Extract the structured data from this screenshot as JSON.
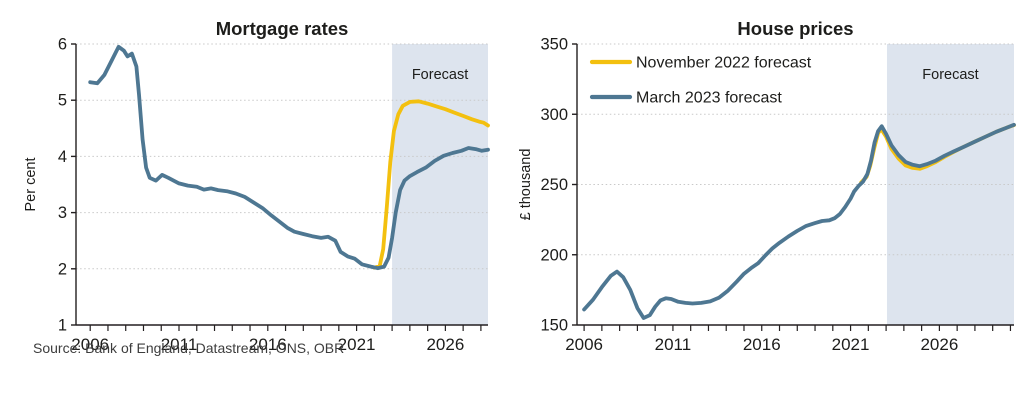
{
  "source_note": "Source: Bank of England, Datastream, ONS, OBR",
  "colors": {
    "nov2022": "#f3c00f",
    "mar2023": "#4e7792",
    "forecast_band": "#dde4ee",
    "grid": "#c9c9c9",
    "axis": "#231f20",
    "text": "#1d1d1b"
  },
  "legend": [
    {
      "label": "November 2022 forecast",
      "color": "nov2022"
    },
    {
      "label": "March 2023 forecast",
      "color": "mar2023"
    }
  ],
  "chart_data": [
    {
      "type": "line",
      "title": "Mortgage rates",
      "ylabel": "Per cent",
      "ylim": [
        1,
        6
      ],
      "yticks": [
        1,
        2,
        3,
        4,
        5,
        6
      ],
      "xlim": [
        2005.2,
        2028.4
      ],
      "xticks_labeled": [
        2006,
        2011,
        2016,
        2021,
        2026
      ],
      "grid": "dotted horizontal",
      "forecast_start": 2023.0,
      "forecast_label": "Forecast",
      "series": [
        {
          "name": "November 2022 forecast",
          "color": "nov2022",
          "points": [
            [
              2022.0,
              2.02
            ],
            [
              2022.3,
              2.05
            ],
            [
              2022.5,
              2.35
            ],
            [
              2022.7,
              3.1
            ],
            [
              2022.9,
              3.9
            ],
            [
              2023.1,
              4.45
            ],
            [
              2023.35,
              4.75
            ],
            [
              2023.6,
              4.9
            ],
            [
              2024.0,
              4.97
            ],
            [
              2024.5,
              4.98
            ],
            [
              2025.0,
              4.94
            ],
            [
              2025.5,
              4.89
            ],
            [
              2026.0,
              4.84
            ],
            [
              2026.5,
              4.78
            ],
            [
              2027.0,
              4.72
            ],
            [
              2027.5,
              4.66
            ],
            [
              2027.9,
              4.62
            ],
            [
              2028.15,
              4.6
            ],
            [
              2028.4,
              4.55
            ]
          ]
        },
        {
          "name": "March 2023 forecast",
          "color": "mar2023",
          "points": [
            [
              2006,
              5.32
            ],
            [
              2006.4,
              5.3
            ],
            [
              2006.8,
              5.45
            ],
            [
              2007.2,
              5.7
            ],
            [
              2007.6,
              5.95
            ],
            [
              2007.9,
              5.88
            ],
            [
              2008.1,
              5.78
            ],
            [
              2008.35,
              5.83
            ],
            [
              2008.6,
              5.6
            ],
            [
              2008.75,
              5.1
            ],
            [
              2008.95,
              4.3
            ],
            [
              2009.15,
              3.8
            ],
            [
              2009.35,
              3.62
            ],
            [
              2009.7,
              3.57
            ],
            [
              2010.05,
              3.67
            ],
            [
              2010.4,
              3.62
            ],
            [
              2011.0,
              3.52
            ],
            [
              2011.5,
              3.48
            ],
            [
              2012.0,
              3.46
            ],
            [
              2012.4,
              3.41
            ],
            [
              2012.8,
              3.43
            ],
            [
              2013.2,
              3.4
            ],
            [
              2013.7,
              3.38
            ],
            [
              2014.2,
              3.34
            ],
            [
              2014.7,
              3.28
            ],
            [
              2015.2,
              3.18
            ],
            [
              2015.7,
              3.08
            ],
            [
              2016.2,
              2.95
            ],
            [
              2016.7,
              2.83
            ],
            [
              2017.1,
              2.73
            ],
            [
              2017.5,
              2.66
            ],
            [
              2018.0,
              2.62
            ],
            [
              2018.5,
              2.58
            ],
            [
              2019.0,
              2.55
            ],
            [
              2019.4,
              2.57
            ],
            [
              2019.8,
              2.5
            ],
            [
              2020.1,
              2.3
            ],
            [
              2020.5,
              2.22
            ],
            [
              2020.9,
              2.18
            ],
            [
              2021.3,
              2.08
            ],
            [
              2021.8,
              2.04
            ],
            [
              2022.2,
              2.01
            ],
            [
              2022.55,
              2.04
            ],
            [
              2022.8,
              2.2
            ],
            [
              2023.0,
              2.55
            ],
            [
              2023.2,
              3.0
            ],
            [
              2023.45,
              3.4
            ],
            [
              2023.7,
              3.57
            ],
            [
              2024.0,
              3.65
            ],
            [
              2024.4,
              3.72
            ],
            [
              2024.9,
              3.8
            ],
            [
              2025.4,
              3.92
            ],
            [
              2025.9,
              4.01
            ],
            [
              2026.4,
              4.06
            ],
            [
              2026.9,
              4.1
            ],
            [
              2027.3,
              4.15
            ],
            [
              2027.7,
              4.13
            ],
            [
              2028.05,
              4.1
            ],
            [
              2028.4,
              4.12
            ]
          ]
        }
      ]
    },
    {
      "type": "line",
      "title": "House prices",
      "ylabel": "£ thousand",
      "ylim": [
        150,
        350
      ],
      "yticks": [
        150,
        200,
        250,
        300,
        350
      ],
      "xlim": [
        2005.6,
        2030.2
      ],
      "xticks_labeled": [
        2006,
        2011,
        2016,
        2021,
        2026
      ],
      "grid": "dotted horizontal",
      "forecast_start": 2023.05,
      "forecast_label": "Forecast",
      "legend_position": "top-left",
      "series": [
        {
          "name": "November 2022 forecast",
          "color": "nov2022",
          "points": [
            [
              2021.6,
              251.5
            ],
            [
              2021.9,
              255.5
            ],
            [
              2022.1,
              263
            ],
            [
              2022.35,
              277
            ],
            [
              2022.55,
              286.5
            ],
            [
              2022.72,
              289.5
            ],
            [
              2023.0,
              284
            ],
            [
              2023.3,
              275.5
            ],
            [
              2023.7,
              268.5
            ],
            [
              2024.1,
              263.5
            ],
            [
              2024.5,
              261.8
            ],
            [
              2024.9,
              261.2
            ],
            [
              2025.3,
              263
            ],
            [
              2025.8,
              266
            ],
            [
              2026.3,
              269.8
            ],
            [
              2026.8,
              273.2
            ],
            [
              2027.4,
              277
            ],
            [
              2028.0,
              280.5
            ],
            [
              2028.6,
              284
            ],
            [
              2029.2,
              287.5
            ],
            [
              2029.8,
              290.5
            ],
            [
              2030.2,
              292.3
            ]
          ]
        },
        {
          "name": "March 2023 forecast",
          "color": "mar2023",
          "points": [
            [
              2006,
              161
            ],
            [
              2006.5,
              168
            ],
            [
              2007,
              177
            ],
            [
              2007.5,
              185
            ],
            [
              2007.85,
              188
            ],
            [
              2008.2,
              184
            ],
            [
              2008.6,
              175
            ],
            [
              2009.0,
              162
            ],
            [
              2009.35,
              155
            ],
            [
              2009.7,
              157
            ],
            [
              2010.0,
              163
            ],
            [
              2010.3,
              167.5
            ],
            [
              2010.6,
              169
            ],
            [
              2010.9,
              168.5
            ],
            [
              2011.3,
              166.5
            ],
            [
              2011.7,
              165.7
            ],
            [
              2012.1,
              165.3
            ],
            [
              2012.6,
              165.7
            ],
            [
              2013.1,
              166.8
            ],
            [
              2013.6,
              169.5
            ],
            [
              2014.1,
              174.5
            ],
            [
              2014.6,
              181
            ],
            [
              2015.0,
              186.5
            ],
            [
              2015.4,
              190.5
            ],
            [
              2015.8,
              194
            ],
            [
              2016.2,
              199.5
            ],
            [
              2016.6,
              204.5
            ],
            [
              2017.0,
              208.5
            ],
            [
              2017.5,
              213
            ],
            [
              2018.0,
              217
            ],
            [
              2018.5,
              220.5
            ],
            [
              2019.0,
              222.5
            ],
            [
              2019.4,
              224
            ],
            [
              2019.8,
              224.5
            ],
            [
              2020.1,
              226
            ],
            [
              2020.4,
              229
            ],
            [
              2020.7,
              234
            ],
            [
              2021.0,
              240
            ],
            [
              2021.2,
              245
            ],
            [
              2021.45,
              249
            ],
            [
              2021.7,
              252
            ],
            [
              2021.95,
              257.5
            ],
            [
              2022.15,
              267
            ],
            [
              2022.35,
              280
            ],
            [
              2022.55,
              288
            ],
            [
              2022.75,
              291.5
            ],
            [
              2023.0,
              286
            ],
            [
              2023.3,
              278
            ],
            [
              2023.7,
              271
            ],
            [
              2024.1,
              266
            ],
            [
              2024.5,
              264
            ],
            [
              2024.9,
              263
            ],
            [
              2025.3,
              264.5
            ],
            [
              2025.8,
              267
            ],
            [
              2026.3,
              270.5
            ],
            [
              2026.8,
              273.5
            ],
            [
              2027.4,
              277
            ],
            [
              2028.0,
              280.5
            ],
            [
              2028.6,
              284
            ],
            [
              2029.2,
              287.5
            ],
            [
              2029.8,
              290.5
            ],
            [
              2030.2,
              292.5
            ]
          ]
        }
      ]
    }
  ]
}
